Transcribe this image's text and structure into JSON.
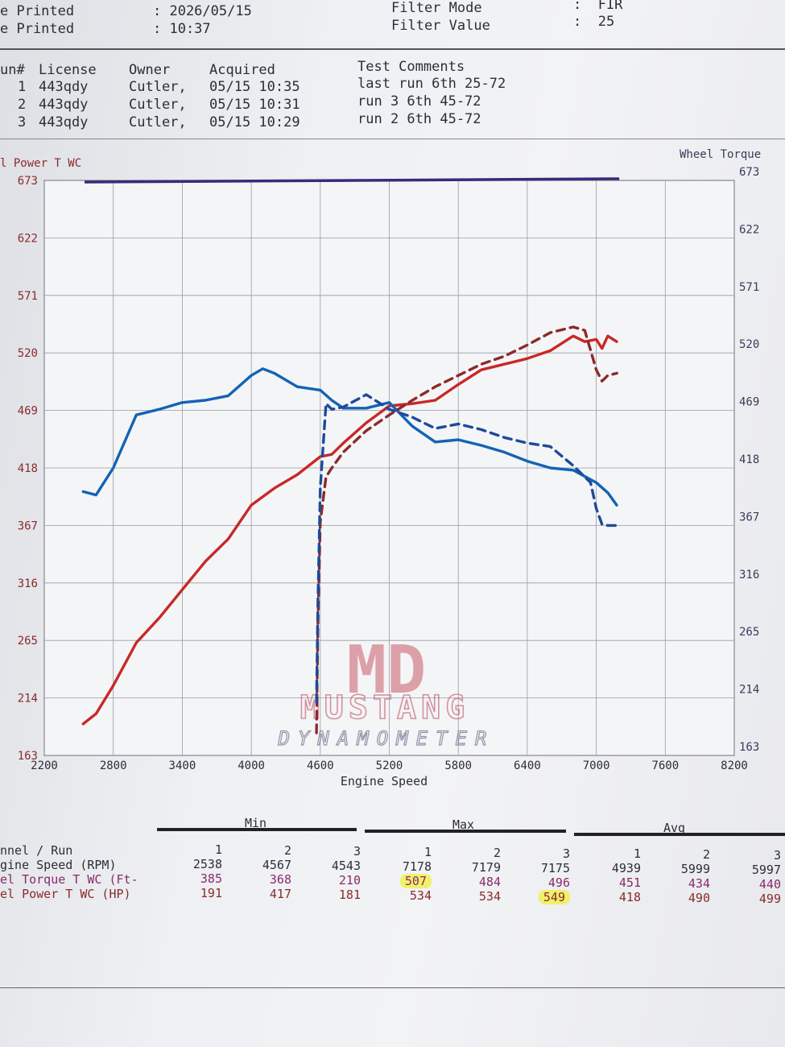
{
  "header": {
    "date_label": "e Printed",
    "date_value": ": 2026/05/15",
    "time_label": "e Printed",
    "time_value": ": 10:37",
    "filter_mode_label": "Filter Mode",
    "filter_mode_value": ":  FIR",
    "filter_value_label": "Filter Value",
    "filter_value_value": ":  25"
  },
  "runs_table": {
    "headers": [
      "un#",
      "License",
      "Owner",
      "Acquired",
      "Test Comments"
    ],
    "rows": [
      [
        "1",
        "443qdy",
        "Cutler,",
        "05/15 10:35",
        "last run 6th 25-72"
      ],
      [
        "2",
        "443qdy",
        "Cutler,",
        "05/15 10:31",
        "run 3 6th 45-72"
      ],
      [
        "3",
        "443qdy",
        "Cutler,",
        "05/15 10:29",
        "run 2 6th 45-72"
      ]
    ]
  },
  "chart_data": {
    "type": "line",
    "left_axis_title": "l Power T WC",
    "right_axis_title": "Wheel Torque",
    "xlabel": "Engine Speed",
    "xlim": [
      2200,
      8200
    ],
    "ylim": [
      163,
      673
    ],
    "x_ticks": [
      "2200",
      "2800",
      "3400",
      "4000",
      "4600",
      "5200",
      "5800",
      "6400",
      "7000",
      "7600",
      "8200"
    ],
    "y_ticks_left": [
      "163",
      "214",
      "265",
      "316",
      "367",
      "418",
      "469",
      "520",
      "571",
      "622",
      "673"
    ],
    "y_ticks_right": [
      "163",
      "214",
      "265",
      "316",
      "367",
      "418",
      "469",
      "520",
      "571",
      "622",
      "673"
    ],
    "watermark_top": "MD",
    "watermark_mid": "MUSTANG",
    "watermark_bottom": "DYNAMOMETER",
    "colors": {
      "power": "#c82828",
      "torque": "#1463b4",
      "power_dashed": "#8c2a2a",
      "torque_dashed": "#1e4a9a",
      "top_line": "#3a2a7a"
    },
    "series": [
      {
        "metric": "power",
        "style": "solid",
        "x": [
          2538,
          2650,
          2800,
          3000,
          3200,
          3400,
          3600,
          3800,
          4000,
          4200,
          4400,
          4600,
          4700,
          4800,
          5000,
          5200,
          5400,
          5600,
          5800,
          6000,
          6200,
          6400,
          6600,
          6800,
          6900,
          7000,
          7050,
          7100,
          7178
        ],
        "y": [
          191,
          200,
          225,
          263,
          285,
          310,
          335,
          355,
          385,
          400,
          412,
          428,
          430,
          440,
          458,
          473,
          475,
          478,
          492,
          505,
          510,
          515,
          522,
          535,
          530,
          532,
          524,
          535,
          530
        ]
      },
      {
        "metric": "torque",
        "style": "solid",
        "x": [
          2538,
          2650,
          2800,
          3000,
          3200,
          3400,
          3600,
          3800,
          4000,
          4100,
          4200,
          4400,
          4600,
          4700,
          4800,
          5000,
          5200,
          5400,
          5600,
          5800,
          6000,
          6200,
          6400,
          6600,
          6800,
          7000,
          7100,
          7178
        ],
        "y": [
          397,
          394,
          418,
          465,
          470,
          476,
          478,
          482,
          500,
          506,
          502,
          490,
          487,
          478,
          471,
          471,
          476,
          455,
          441,
          443,
          438,
          432,
          424,
          418,
          416,
          405,
          396,
          385
        ]
      },
      {
        "metric": "power",
        "style": "dashed",
        "x": [
          4567,
          4580,
          4600,
          4650,
          4700,
          4800,
          5000,
          5200,
          5400,
          5600,
          5800,
          6000,
          6200,
          6400,
          6600,
          6800,
          6900,
          7000,
          7050,
          7100,
          7179
        ],
        "y": [
          183,
          280,
          370,
          410,
          418,
          432,
          451,
          465,
          478,
          490,
          500,
          510,
          517,
          527,
          538,
          543,
          540,
          505,
          495,
          500,
          502
        ]
      },
      {
        "metric": "torque",
        "style": "dashed",
        "x": [
          4567,
          4580,
          4600,
          4650,
          4700,
          4800,
          5000,
          5200,
          5400,
          5600,
          5800,
          6000,
          6200,
          6400,
          6600,
          6800,
          6950,
          7000,
          7050,
          7100,
          7179
        ],
        "y": [
          210,
          300,
          400,
          475,
          470,
          472,
          483,
          470,
          463,
          453,
          457,
          452,
          445,
          440,
          437,
          420,
          405,
          382,
          368,
          367,
          367
        ]
      }
    ]
  },
  "stats": {
    "min_label": "Min",
    "max_label": "Max",
    "avg_label": "Avg",
    "row_labels": [
      "nnel / Run",
      "gine Speed (RPM)",
      "el Torque T WC (Ft-",
      "el Power T WC (HP)"
    ],
    "runs": [
      "1",
      "2",
      "3",
      "1",
      "2",
      "3",
      "1",
      "2",
      "3"
    ],
    "engine_speed": [
      "2538",
      "4567",
      "4543",
      "7178",
      "7179",
      "7175",
      "4939",
      "5999",
      "5997"
    ],
    "wheel_torque": [
      "385",
      "368",
      "210",
      "507",
      "484",
      "496",
      "451",
      "434",
      "440"
    ],
    "wheel_power": [
      "191",
      "417",
      "181",
      "534",
      "534",
      "549",
      "418",
      "490",
      "499"
    ]
  }
}
